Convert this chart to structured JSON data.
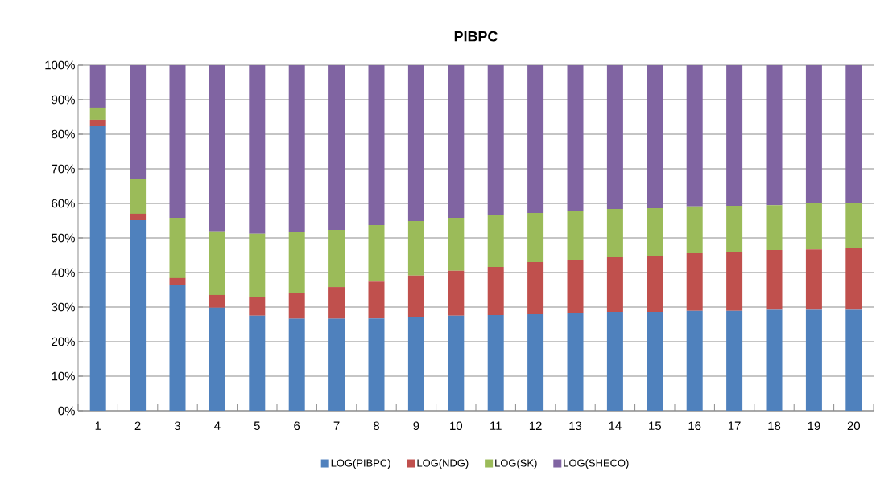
{
  "chart_data": {
    "type": "bar",
    "stacked": true,
    "title": "PIBPC",
    "categories": [
      "1",
      "2",
      "3",
      "4",
      "5",
      "6",
      "7",
      "8",
      "9",
      "10",
      "11",
      "12",
      "13",
      "14",
      "15",
      "16",
      "17",
      "18",
      "19",
      "20"
    ],
    "series": [
      {
        "name": "LOG(PIBPC)",
        "color": "#4f81bd",
        "values": [
          82.3,
          55.1,
          36.4,
          29.8,
          27.5,
          26.6,
          26.6,
          26.7,
          27.2,
          27.5,
          27.7,
          28.1,
          28.4,
          28.6,
          28.6,
          28.9,
          28.9,
          29.4,
          29.4,
          29.4
        ]
      },
      {
        "name": "LOG(NDG)",
        "color": "#c0504d",
        "values": [
          1.9,
          1.9,
          2.0,
          3.7,
          5.5,
          7.4,
          9.2,
          10.7,
          11.9,
          13.0,
          13.9,
          14.9,
          15.1,
          15.8,
          16.3,
          16.7,
          16.9,
          17.1,
          17.3,
          17.6
        ]
      },
      {
        "name": "LOG(SK)",
        "color": "#9bbb59",
        "values": [
          3.5,
          10.0,
          17.4,
          18.4,
          18.2,
          17.6,
          16.5,
          16.3,
          15.8,
          15.3,
          14.9,
          14.2,
          14.4,
          14.0,
          13.7,
          13.5,
          13.5,
          13.0,
          13.3,
          13.2
        ]
      },
      {
        "name": "LOG(SHECO)",
        "color": "#8064a2",
        "values": [
          12.3,
          33.0,
          44.2,
          48.1,
          48.8,
          48.4,
          47.7,
          46.3,
          45.1,
          44.2,
          43.5,
          42.8,
          42.1,
          41.6,
          41.4,
          40.9,
          40.7,
          40.5,
          40.0,
          39.8
        ]
      }
    ],
    "ylim": [
      0,
      100
    ],
    "yticks": [
      {
        "value": 0,
        "label": "0%"
      },
      {
        "value": 10,
        "label": "10%"
      },
      {
        "value": 20,
        "label": "20%"
      },
      {
        "value": 30,
        "label": "30%"
      },
      {
        "value": 40,
        "label": "40%"
      },
      {
        "value": 50,
        "label": "50%"
      },
      {
        "value": 60,
        "label": "60%"
      },
      {
        "value": 70,
        "label": "70%"
      },
      {
        "value": 80,
        "label": "80%"
      },
      {
        "value": 90,
        "label": "90%"
      },
      {
        "value": 100,
        "label": "100%"
      }
    ],
    "grid": "y",
    "legend": "bottom"
  }
}
